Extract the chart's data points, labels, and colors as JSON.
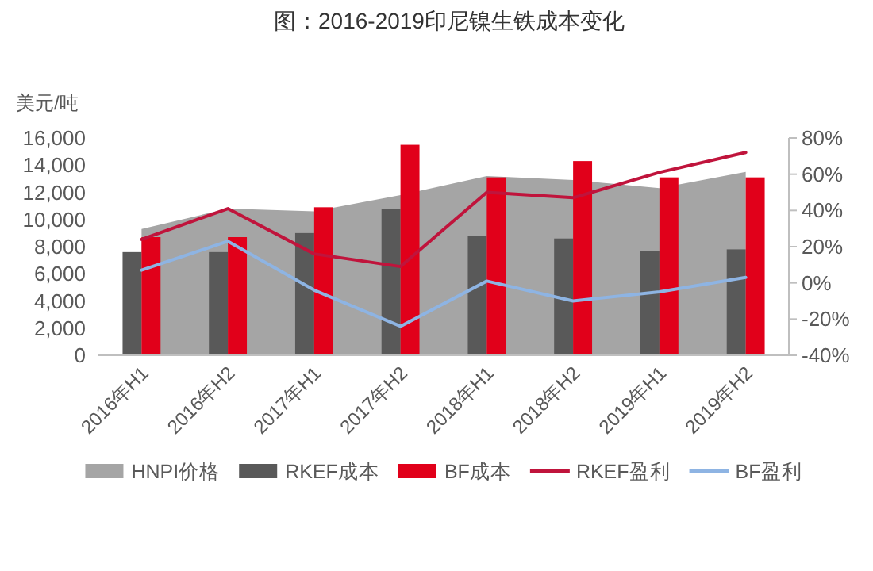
{
  "chart_data": {
    "type": "bar",
    "title": "图：2016-2019印尼镍生铁成本变化",
    "ylabel": "美元/吨",
    "categories": [
      "2016年H1",
      "2016年H2",
      "2017年H1",
      "2017年H2",
      "2018年H1",
      "2018年H2",
      "2019年H1",
      "2019年H2"
    ],
    "series": [
      {
        "name": "HNPI价格",
        "type": "area",
        "color": "#a5a5a5",
        "values": [
          9300,
          10800,
          10600,
          11800,
          13200,
          12900,
          12300,
          13500
        ]
      },
      {
        "name": "RKEF成本",
        "color": "#595959",
        "values": [
          7600,
          7600,
          9000,
          10800,
          8800,
          8600,
          7700,
          7800
        ]
      },
      {
        "name": "BF成本",
        "color": "#e1001a",
        "values": [
          8700,
          8700,
          10900,
          15500,
          13100,
          14300,
          13100,
          13100
        ]
      },
      {
        "name": "RKEF盈利",
        "type": "line",
        "axis": "y2",
        "color": "#c0143c",
        "values": [
          24,
          41,
          16,
          9,
          50,
          47,
          61,
          72
        ]
      },
      {
        "name": "BF盈利",
        "type": "line",
        "axis": "y2",
        "color": "#8eb4e3",
        "values": [
          7,
          23,
          -4,
          -24,
          1,
          -10,
          -5,
          3
        ]
      }
    ],
    "ylim": [
      0,
      16000
    ],
    "yticks": [
      0,
      {
        "value": 2000,
        "label": "2,000"
      },
      {
        "value": 4000,
        "label": "4,000"
      },
      {
        "value": 6000,
        "label": "6,000"
      },
      {
        "value": 8000,
        "label": "8,000"
      },
      {
        "value": 10000,
        "label": "10,000"
      },
      {
        "value": 12000,
        "label": "12,000"
      },
      {
        "value": 14000,
        "label": "14,000"
      },
      {
        "value": 16000,
        "label": "16,000"
      }
    ],
    "y2lim": [
      -40,
      80
    ],
    "y2ticks": [
      {
        "value": -40,
        "label": "-40%"
      },
      {
        "value": -20,
        "label": "-20%"
      },
      {
        "value": 0,
        "label": "0%"
      },
      {
        "value": 20,
        "label": "20%"
      },
      {
        "value": 40,
        "label": "40%"
      },
      {
        "value": 60,
        "label": "60%"
      },
      {
        "value": 80,
        "label": "80%"
      }
    ],
    "legend": "bottom"
  }
}
